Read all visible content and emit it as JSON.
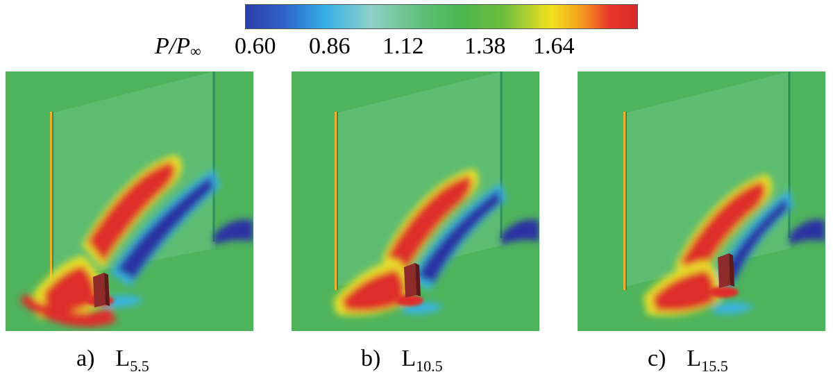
{
  "colorbar": {
    "variable": "P/P",
    "variable_subscript": "∞",
    "ticks": [
      "0.60",
      "0.86",
      "1.12",
      "1.38",
      "1.64"
    ],
    "colors": [
      "#2b3fa6",
      "#2f63c9",
      "#34aee6",
      "#8fd0c8",
      "#5fbf7a",
      "#4cb54b",
      "#6dbe3f",
      "#c8d629",
      "#f3e21a",
      "#f39a1f",
      "#e6352a",
      "#d92b27"
    ]
  },
  "panels": [
    {
      "letter": "a)",
      "label": "L",
      "subscript": "5.5"
    },
    {
      "letter": "b)",
      "label": "L",
      "subscript": "10.5"
    },
    {
      "letter": "c)",
      "label": "L",
      "subscript": "15.5"
    }
  ],
  "field_colors": {
    "background": "#4fb35c",
    "high_pressure": "#de2f29",
    "low_pressure": "#2b33a3",
    "transition_yellow": "#e8e02a",
    "transition_cyan": "#39b3df"
  }
}
